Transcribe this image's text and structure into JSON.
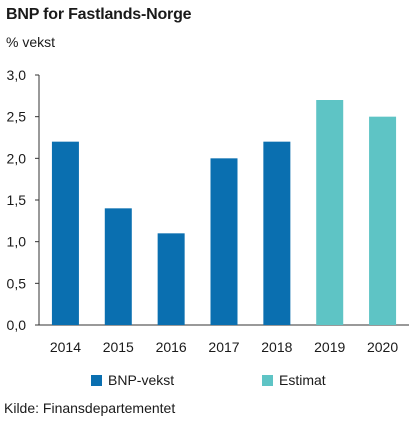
{
  "chart_data": {
    "type": "bar",
    "title": "BNP for Fastlands-Norge",
    "ylabel": "% vekst",
    "categories": [
      "2014",
      "2015",
      "2016",
      "2017",
      "2018",
      "2019",
      "2020"
    ],
    "series": [
      {
        "name": "BNP-vekst",
        "color": "#0a6fb0",
        "values": [
          2.2,
          1.4,
          1.1,
          2.0,
          2.2,
          null,
          null
        ]
      },
      {
        "name": "Estimat",
        "color": "#5ec4c5",
        "values": [
          null,
          null,
          null,
          null,
          null,
          2.7,
          2.5
        ]
      }
    ],
    "ylim": [
      0,
      3.0
    ],
    "yticks": [
      "0,0",
      "0,5",
      "1,0",
      "1,5",
      "2,0",
      "2,5",
      "3,0"
    ],
    "grid": false,
    "legend": "bottom",
    "source": "Kilde: Finansdepartementet"
  }
}
